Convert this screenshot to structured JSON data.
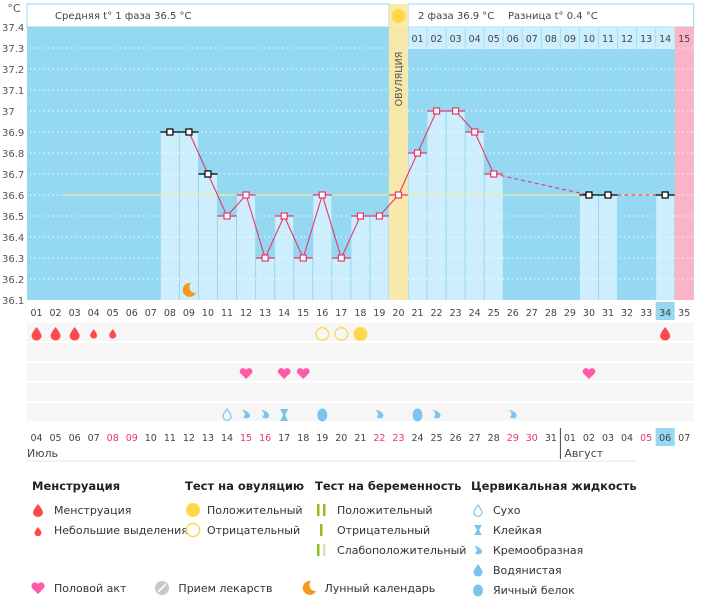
{
  "header": {
    "unit_label": "°C",
    "phase1_label": "Средняя t° 1 фаза",
    "phase1_value": "36.5 °C",
    "phase2_label": "2 фаза",
    "phase2_value": "36.9 °C",
    "diff_label": "Разница t°",
    "diff_value": "0.4 °C",
    "ovulation_label": "ОВУЛЯЦИЯ"
  },
  "colors": {
    "chart_bg": "#94d8f2",
    "bar_fill": "#cdeefc",
    "ovulation_band": "#fbe9a6",
    "next_period": "#fbb3c6",
    "temp_line": "#e8386a",
    "coverline": "#f5e6a0",
    "weekend_red": "#e8386a",
    "menstruation": "#ff4a4a",
    "heart": "#ff5aa8",
    "ovulation_test": "#ffd84a",
    "cervical": "#7cc4ee",
    "moon": "#f39a1d"
  },
  "chart_data": {
    "type": "line",
    "title": "",
    "ylabel": "°C",
    "xlabel": "День цикла",
    "ylim": [
      36.1,
      37.4
    ],
    "yticks": [
      "37.4",
      "37.3",
      "37.2",
      "37.1",
      "37",
      "36.9",
      "36.8",
      "36.7",
      "36.6",
      "36.5",
      "36.4",
      "36.3",
      "36.2",
      "36.1"
    ],
    "grid": true,
    "coverline": 36.6,
    "ovulation_day": 20,
    "next_period_day": 35,
    "today_day": 34,
    "cycle_days": [
      "01",
      "02",
      "03",
      "04",
      "05",
      "06",
      "07",
      "08",
      "09",
      "10",
      "11",
      "12",
      "13",
      "14",
      "15",
      "16",
      "17",
      "18",
      "19",
      "20",
      "21",
      "22",
      "23",
      "24",
      "25",
      "26",
      "27",
      "28",
      "29",
      "30",
      "31",
      "32",
      "33",
      "34",
      "35"
    ],
    "luteal_days": [
      "01",
      "02",
      "03",
      "04",
      "05",
      "06",
      "07",
      "08",
      "09",
      "10",
      "11",
      "12",
      "13",
      "14",
      "15"
    ],
    "series": [
      {
        "name": "Базальная температура",
        "points": [
          {
            "day": 8,
            "value": 36.9,
            "excluded": true
          },
          {
            "day": 9,
            "value": 36.9,
            "excluded": true
          },
          {
            "day": 10,
            "value": 36.7,
            "excluded": true
          },
          {
            "day": 11,
            "value": 36.5
          },
          {
            "day": 12,
            "value": 36.6
          },
          {
            "day": 13,
            "value": 36.3
          },
          {
            "day": 14,
            "value": 36.5
          },
          {
            "day": 15,
            "value": 36.3
          },
          {
            "day": 16,
            "value": 36.6
          },
          {
            "day": 17,
            "value": 36.3
          },
          {
            "day": 18,
            "value": 36.5
          },
          {
            "day": 19,
            "value": 36.5
          },
          {
            "day": 20,
            "value": 36.6
          },
          {
            "day": 21,
            "value": 36.8
          },
          {
            "day": 22,
            "value": 37.0
          },
          {
            "day": 23,
            "value": 37.0
          },
          {
            "day": 24,
            "value": 36.9
          },
          {
            "day": 25,
            "value": 36.7
          },
          {
            "day": 30,
            "value": 36.6,
            "excluded": true
          },
          {
            "day": 31,
            "value": 36.6,
            "excluded": true
          },
          {
            "day": 34,
            "value": 36.6,
            "excluded": true
          }
        ]
      }
    ],
    "markers": {
      "menstruation": [
        {
          "day": 1,
          "kind": "heavy"
        },
        {
          "day": 2,
          "kind": "heavy"
        },
        {
          "day": 3,
          "kind": "heavy"
        },
        {
          "day": 4,
          "kind": "light"
        },
        {
          "day": 5,
          "kind": "light"
        },
        {
          "day": 34,
          "kind": "heavy"
        }
      ],
      "ovulation_test": [
        {
          "day": 16,
          "kind": "negative"
        },
        {
          "day": 17,
          "kind": "negative"
        },
        {
          "day": 18,
          "kind": "positive"
        }
      ],
      "intercourse": [
        12,
        14,
        15,
        30
      ],
      "cervical_fluid": [
        {
          "day": 8,
          "kind": "dry"
        },
        {
          "day": 9,
          "kind": "creamy"
        },
        {
          "day": 10,
          "kind": "creamy"
        },
        {
          "day": 11,
          "kind": "sticky"
        },
        {
          "day": 13,
          "kind": "eggwhite"
        },
        {
          "day": 16,
          "kind": "creamy"
        },
        {
          "day": 18,
          "kind": "eggwhite"
        },
        {
          "day": 19,
          "kind": "creamy"
        },
        {
          "day": 23,
          "kind": "creamy"
        }
      ],
      "moon": [
        9
      ]
    },
    "dates": [
      {
        "d": "04"
      },
      {
        "d": "05"
      },
      {
        "d": "06"
      },
      {
        "d": "07"
      },
      {
        "d": "08",
        "weekend": true
      },
      {
        "d": "09",
        "weekend": true
      },
      {
        "d": "10"
      },
      {
        "d": "11"
      },
      {
        "d": "12"
      },
      {
        "d": "13"
      },
      {
        "d": "14"
      },
      {
        "d": "15",
        "weekend": true
      },
      {
        "d": "16",
        "weekend": true
      },
      {
        "d": "17"
      },
      {
        "d": "18"
      },
      {
        "d": "19"
      },
      {
        "d": "20"
      },
      {
        "d": "21"
      },
      {
        "d": "22",
        "weekend": true
      },
      {
        "d": "23",
        "weekend": true
      },
      {
        "d": "24"
      },
      {
        "d": "25"
      },
      {
        "d": "26"
      },
      {
        "d": "27"
      },
      {
        "d": "28"
      },
      {
        "d": "29",
        "weekend": true
      },
      {
        "d": "30",
        "weekend": true
      },
      {
        "d": "31"
      },
      {
        "d": "01"
      },
      {
        "d": "02"
      },
      {
        "d": "03"
      },
      {
        "d": "04"
      },
      {
        "d": "05",
        "weekend": true
      },
      {
        "d": "06",
        "today": true
      },
      {
        "d": "07"
      }
    ],
    "months": [
      {
        "label": "Июль",
        "start_day": 1
      },
      {
        "label": "Август",
        "start_day": 29
      }
    ]
  },
  "legend": {
    "menstruation": {
      "title": "Менструация",
      "items": [
        "Менструация",
        "Небольшие выделения"
      ]
    },
    "ovulation_test": {
      "title": "Тест на овуляцию",
      "items": [
        "Положительный",
        "Отрицательный"
      ]
    },
    "pregnancy_test": {
      "title": "Тест на беременность",
      "items": [
        "Положительный",
        "Отрицательный",
        "Слабоположительный"
      ]
    },
    "cervical": {
      "title": "Цервикальная жидкость",
      "items": [
        "Сухо",
        "Клейкая",
        "Кремообразная",
        "Водянистая",
        "Яичный белок"
      ]
    },
    "bottom": [
      "Половой акт",
      "Прием лекарств",
      "Лунный календарь"
    ]
  }
}
